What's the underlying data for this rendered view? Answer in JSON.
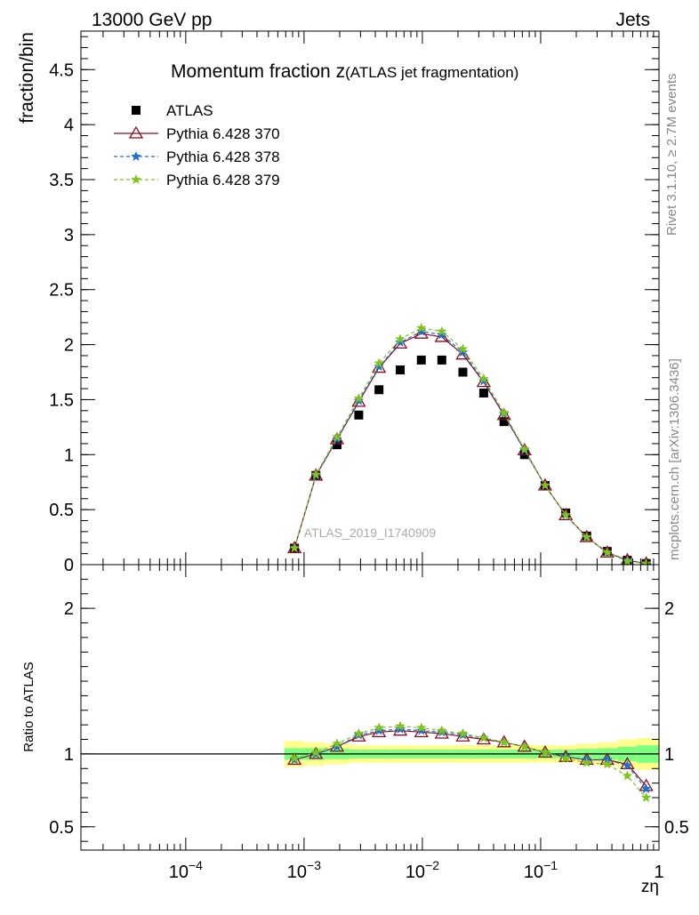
{
  "header": {
    "left": "13000 GeV pp",
    "right": "Jets"
  },
  "side_text": {
    "rivet": "Rivet 3.1.10, ≥ 2.7M events",
    "mcplots": "mcplots.cern.ch [arXiv:1306.3436]"
  },
  "colors": {
    "atlas": "#000000",
    "p370": "#8b0c20",
    "p378": "#1f6fd0",
    "p379": "#7fc41c",
    "band_inner": "#7fff7f",
    "band_outer": "#ffff8c"
  },
  "chart_data": [
    {
      "type": "scatter",
      "title_main": "Momentum fraction z",
      "title_sub": "(ATLAS jet fragmentation)",
      "ylabel": "fraction/bin",
      "watermark": "ATLAS_2019_I1740909",
      "xscale": "log",
      "xlim": [
        1.3e-05,
        1.0
      ],
      "ylim": [
        0,
        4.85
      ],
      "yticks": [
        {
          "v": 0,
          "label": "0"
        },
        {
          "v": 0.5,
          "label": "0.5"
        },
        {
          "v": 1,
          "label": "1"
        },
        {
          "v": 1.5,
          "label": "1.5"
        },
        {
          "v": 2,
          "label": "2"
        },
        {
          "v": 2.5,
          "label": "2.5"
        },
        {
          "v": 3,
          "label": "3"
        },
        {
          "v": 3.5,
          "label": "3.5"
        },
        {
          "v": 4,
          "label": "4"
        },
        {
          "v": 4.5,
          "label": "4.5"
        }
      ],
      "x": [
        0.00083,
        0.00126,
        0.0019,
        0.0029,
        0.0043,
        0.0065,
        0.0098,
        0.0146,
        0.022,
        0.033,
        0.049,
        0.073,
        0.109,
        0.163,
        0.245,
        0.365,
        0.54,
        0.78
      ],
      "series": [
        {
          "name": "ATLAS",
          "key": "atlas",
          "marker": "square",
          "dashed": false,
          "values": [
            0.15,
            0.81,
            1.09,
            1.36,
            1.59,
            1.77,
            1.86,
            1.86,
            1.75,
            1.56,
            1.3,
            1.0,
            0.72,
            0.47,
            0.26,
            0.12,
            0.04,
            0.01
          ]
        },
        {
          "name": "Pythia 6.428 370",
          "key": "p370",
          "marker": "triangle",
          "dashed": false,
          "values": [
            0.15,
            0.81,
            1.14,
            1.48,
            1.79,
            2.01,
            2.1,
            2.07,
            1.91,
            1.66,
            1.36,
            1.04,
            0.72,
            0.45,
            0.25,
            0.11,
            0.04,
            0.01
          ]
        },
        {
          "name": "Pythia 6.428 378",
          "key": "p378",
          "marker": "star",
          "dashed": true,
          "values": [
            0.15,
            0.81,
            1.14,
            1.49,
            1.8,
            2.02,
            2.12,
            2.09,
            1.93,
            1.67,
            1.37,
            1.04,
            0.72,
            0.45,
            0.25,
            0.11,
            0.04,
            0.01
          ]
        },
        {
          "name": "Pythia 6.428 379",
          "key": "p379",
          "marker": "star",
          "dashed": true,
          "values": [
            0.15,
            0.82,
            1.16,
            1.51,
            1.83,
            2.05,
            2.15,
            2.12,
            1.96,
            1.69,
            1.38,
            1.05,
            0.72,
            0.45,
            0.25,
            0.11,
            0.03,
            0.01
          ]
        }
      ]
    },
    {
      "type": "scatter",
      "ylabel": "Ratio to ATLAS",
      "xlabel": "zη",
      "xscale": "log",
      "xlim": [
        1.3e-05,
        1.0
      ],
      "ylim": [
        0.34,
        2.3
      ],
      "yticks": [
        {
          "v": 0.5,
          "label": "0.5"
        },
        {
          "v": 1,
          "label": "1"
        },
        {
          "v": 2,
          "label": "2"
        }
      ],
      "xticks": [
        {
          "v": 0.0001,
          "base": "10",
          "exp": "−4"
        },
        {
          "v": 0.001,
          "base": "10",
          "exp": "−3"
        },
        {
          "v": 0.01,
          "base": "10",
          "exp": "−2"
        },
        {
          "v": 0.1,
          "base": "10",
          "exp": "−1"
        },
        {
          "v": 1,
          "base": "1",
          "exp": ""
        }
      ],
      "band_edges": [
        0.00068,
        0.001,
        0.0015,
        0.0024,
        0.0036,
        0.0053,
        0.008,
        0.012,
        0.018,
        0.027,
        0.04,
        0.06,
        0.09,
        0.135,
        0.2,
        0.3,
        0.45,
        0.65,
        1.0
      ],
      "band_inner": [
        0.04,
        0.04,
        0.035,
        0.03,
        0.03,
        0.03,
        0.03,
        0.03,
        0.03,
        0.03,
        0.03,
        0.03,
        0.03,
        0.03,
        0.035,
        0.04,
        0.05,
        0.06
      ],
      "band_outer": [
        0.09,
        0.08,
        0.07,
        0.06,
        0.06,
        0.06,
        0.06,
        0.06,
        0.06,
        0.06,
        0.06,
        0.06,
        0.06,
        0.06,
        0.07,
        0.08,
        0.1,
        0.11
      ],
      "series": [
        {
          "name": "Pythia 6.428 370",
          "key": "p370",
          "marker": "triangle",
          "dashed": false,
          "values": [
            0.96,
            1.0,
            1.05,
            1.12,
            1.15,
            1.16,
            1.15,
            1.14,
            1.12,
            1.1,
            1.08,
            1.05,
            1.01,
            0.98,
            0.96,
            0.96,
            0.93,
            0.78
          ]
        },
        {
          "name": "Pythia 6.428 378",
          "key": "p378",
          "marker": "star",
          "dashed": true,
          "values": [
            0.96,
            1.0,
            1.05,
            1.13,
            1.16,
            1.17,
            1.16,
            1.15,
            1.13,
            1.11,
            1.08,
            1.05,
            1.01,
            0.98,
            0.96,
            0.96,
            0.92,
            0.76
          ]
        },
        {
          "name": "Pythia 6.428 379",
          "key": "p379",
          "marker": "star",
          "dashed": true,
          "values": [
            0.97,
            1.01,
            1.07,
            1.14,
            1.18,
            1.19,
            1.18,
            1.16,
            1.14,
            1.11,
            1.08,
            1.05,
            1.01,
            0.97,
            0.94,
            0.93,
            0.85,
            0.7
          ]
        }
      ]
    }
  ]
}
